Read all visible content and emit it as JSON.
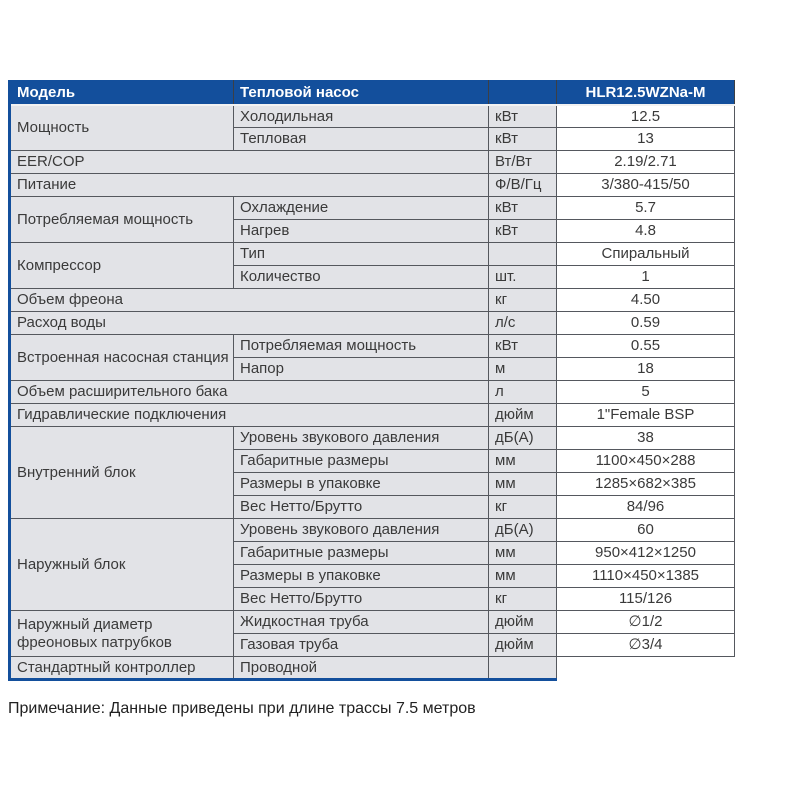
{
  "header": {
    "col1": "Модель",
    "col2": "Тепловой насос",
    "col3": "",
    "col4": "HLR12.5WZNa-M"
  },
  "rows": [
    {
      "group": "Мощность",
      "param": "Холодильная",
      "unit": "кВт",
      "value": "12.5"
    },
    {
      "group": "",
      "param": "Тепловая",
      "unit": "кВт",
      "value": "13"
    },
    {
      "group": "EER/COP",
      "param": "",
      "unit": "Вт/Вт",
      "value": "2.19/2.71"
    },
    {
      "group": "Питание",
      "param": "",
      "unit": "Ф/В/Гц",
      "value": "3/380-415/50"
    },
    {
      "group": "Потребляемая мощность",
      "param": "Охлаждение",
      "unit": "кВт",
      "value": "5.7"
    },
    {
      "group": "",
      "param": "Нагрев",
      "unit": "кВт",
      "value": "4.8"
    },
    {
      "group": "Компрессор",
      "param": "Тип",
      "unit": "",
      "value": "Спиральный"
    },
    {
      "group": "",
      "param": "Количество",
      "unit": "шт.",
      "value": "1"
    },
    {
      "group": "Объем фреона",
      "param": "",
      "unit": "кг",
      "value": "4.50"
    },
    {
      "group": "Расход воды",
      "param": "",
      "unit": "л/с",
      "value": "0.59"
    },
    {
      "group": "Встроенная насосная станция",
      "param": "Потребляемая мощность",
      "unit": "кВт",
      "value": "0.55"
    },
    {
      "group": "",
      "param": "Напор",
      "unit": "м",
      "value": "18"
    },
    {
      "group": "Объем расширительного бака",
      "param": "",
      "unit": "л",
      "value": "5"
    },
    {
      "group": "Гидравлические подключения",
      "param": "",
      "unit": "дюйм",
      "value": "1\"Female BSP"
    },
    {
      "group": "Внутренний блок",
      "param": "Уровень звукового давления",
      "unit": "дБ(А)",
      "value": "38"
    },
    {
      "group": "",
      "param": "Габаритные размеры",
      "unit": "мм",
      "value": "1100×450×288"
    },
    {
      "group": "",
      "param": "Размеры в упаковке",
      "unit": "мм",
      "value": "1285×682×385"
    },
    {
      "group": "",
      "param": "Вес Нетто/Брутто",
      "unit": "кг",
      "value": "84/96"
    },
    {
      "group": "Наружный блок",
      "param": "Уровень звукового давления",
      "unit": "дБ(А)",
      "value": "60"
    },
    {
      "group": "",
      "param": "Габаритные размеры",
      "unit": "мм",
      "value": "950×412×1250"
    },
    {
      "group": "",
      "param": "Размеры в упаковке",
      "unit": "мм",
      "value": "1110×450×1385"
    },
    {
      "group": "",
      "param": "Вес Нетто/Брутто",
      "unit": "кг",
      "value": "115/126"
    },
    {
      "group": "Наружный диаметр фреоновых патрубков",
      "param": "Жидкостная труба",
      "unit": "дюйм",
      "value": "∅1/2"
    },
    {
      "group": "",
      "param": "Газовая труба",
      "unit": "дюйм",
      "value": "∅3/4"
    },
    {
      "group": "Стандартный контроллер",
      "param": "Проводной",
      "unit": "",
      "value": ""
    }
  ],
  "note": "Примечание: Данные приведены при длине трассы 7.5 метров"
}
